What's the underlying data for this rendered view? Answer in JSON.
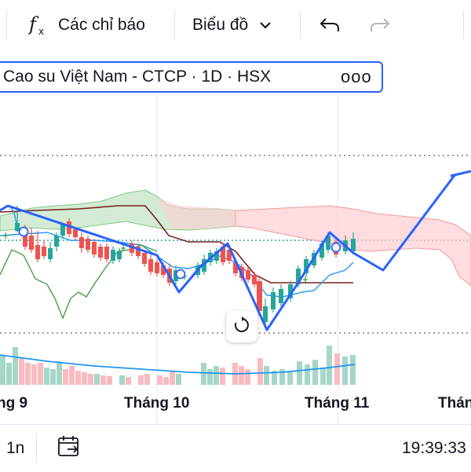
{
  "toolbar": {
    "indicators_label": "Các chỉ báo",
    "chart_type_label": "Biểu đồ",
    "icons": [
      "fx-icon",
      "chevron-down-icon",
      "undo-icon",
      "redo-icon"
    ]
  },
  "symbol": {
    "title": "Cao su Việt Nam - CTCP · 1D · HSX",
    "more": "ooo"
  },
  "chart_data": {
    "type": "candlestick",
    "x_labels": [
      "ng 9",
      "Tháng 10",
      "Tháng 11",
      "Thán"
    ],
    "colors": {
      "up": "#26a69a",
      "down": "#ef5350",
      "cloud_bull": "#c8e6c9",
      "cloud_bear": "#ffcdd2",
      "base_line": "#7b1f1f",
      "conversion_line": "#2196f3",
      "lagging_span": "#43a047",
      "pattern_line": "#2962ff"
    },
    "grid": false
  },
  "bottom_bar": {
    "interval": "1n",
    "time": "19:39:33"
  }
}
